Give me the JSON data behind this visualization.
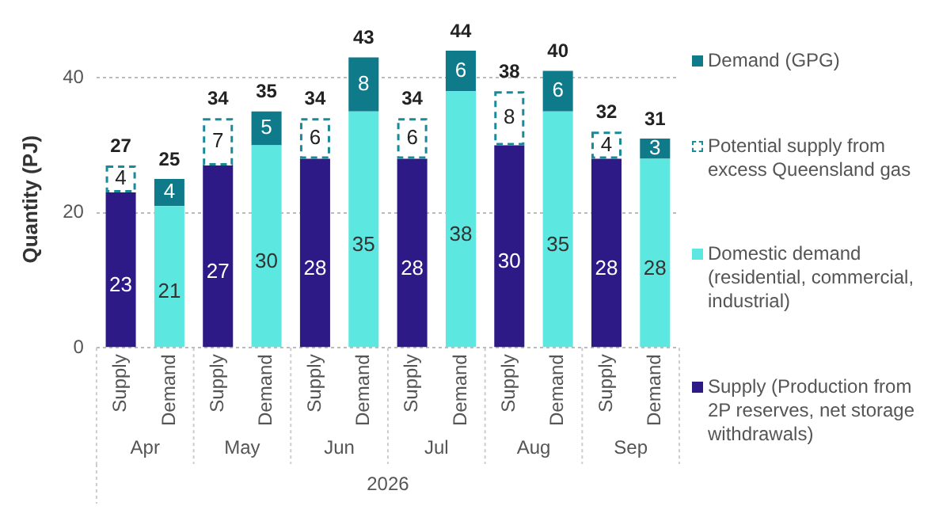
{
  "chart_data": {
    "type": "bar",
    "stacked": true,
    "ylabel": "Quantity (PJ)",
    "xlabel": "2026",
    "categories": [
      "Supply",
      "Demand",
      "Supply",
      "Demand",
      "Supply",
      "Demand",
      "Supply",
      "Demand",
      "Supply",
      "Demand",
      "Supply",
      "Demand"
    ],
    "annotations": [
      "Apr",
      "May",
      "Jun",
      "Jul",
      "Aug",
      "Sep"
    ],
    "series": [
      {
        "name": "Supply (Production from 2P reserves, net storage withdrawals)",
        "color": "#2e1a87",
        "values": [
          23,
          null,
          27,
          null,
          28,
          null,
          28,
          null,
          30,
          null,
          28,
          null
        ]
      },
      {
        "name": "Domestic demand (residential, commercial, industrial)",
        "color": "#5ce8e0",
        "values": [
          null,
          21,
          null,
          30,
          null,
          35,
          null,
          38,
          null,
          35,
          null,
          28
        ]
      },
      {
        "name": "Potential supply from excess Queensland gas",
        "color": "#1a8a9a",
        "line_style": "dashed",
        "values": [
          4,
          null,
          7,
          null,
          6,
          null,
          6,
          null,
          8,
          null,
          4,
          null
        ]
      },
      {
        "name": "Demand (GPG)",
        "color": "#0e7a8a",
        "values": [
          null,
          4,
          null,
          5,
          null,
          8,
          null,
          6,
          null,
          6,
          null,
          3
        ]
      }
    ],
    "totals": [
      "27",
      "25",
      "34",
      "35",
      "34",
      "43",
      "34",
      "44",
      "38",
      "40",
      "32",
      "31"
    ],
    "data_labels": true,
    "ylim": [
      0,
      44
    ],
    "yticks": [
      0,
      20,
      40
    ],
    "grid": "y",
    "legend": "right"
  }
}
